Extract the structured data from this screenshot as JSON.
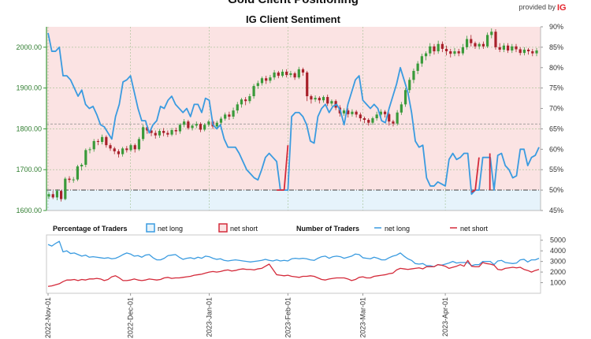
{
  "header": {
    "title": "Gold Client Positioning",
    "subtitle": "IG Client Sentiment",
    "brand_provided_by": "provided by",
    "brand_logo": "IG"
  },
  "colors": {
    "long": "#3a9be0",
    "short": "#d42a3a",
    "bull_candle": "#3a9a3a",
    "bear_candle": "#a8202a",
    "long_zone": "#e6f3fb",
    "short_zone": "#fbe3e3",
    "left_axis": "#3a9a3a",
    "brand_red": "#e4232b"
  },
  "legend": {
    "percentage_title": "Percentage of Traders",
    "pct_long": "net long",
    "pct_short": "net short",
    "number_title": "Number of Traders",
    "num_long": "net long",
    "num_short": "net short"
  },
  "chart_data": [
    {
      "type": "candlestick",
      "title": "IG Client Sentiment",
      "series_name": "Gold",
      "ylim_left": [
        1600,
        2050
      ],
      "left_ticks": [
        "1600.00",
        "1700.00",
        "1800.00",
        "1900.00",
        "2000.00"
      ],
      "ylim_right": [
        45,
        90
      ],
      "right_ticks": [
        "45%",
        "50%",
        "55%",
        "60%",
        "65%",
        "70%",
        "75%",
        "80%",
        "85%",
        "90%"
      ],
      "reference_lines": [
        {
          "axis": "left",
          "value": 1812,
          "style": "dashed"
        },
        {
          "axis": "right",
          "value": 50,
          "style": "dash-dot"
        }
      ],
      "candles": [
        [
          1634,
          1640,
          1628,
          1645
        ],
        [
          1640,
          1632,
          1628,
          1648
        ],
        [
          1632,
          1648,
          1625,
          1652
        ],
        [
          1648,
          1628,
          1622,
          1650
        ],
        [
          1628,
          1678,
          1625,
          1682
        ],
        [
          1678,
          1675,
          1668,
          1684
        ],
        [
          1675,
          1676,
          1668,
          1682
        ],
        [
          1676,
          1708,
          1672,
          1712
        ],
        [
          1708,
          1712,
          1698,
          1716
        ],
        [
          1712,
          1748,
          1706,
          1752
        ],
        [
          1748,
          1750,
          1740,
          1755
        ],
        [
          1750,
          1770,
          1744,
          1775
        ],
        [
          1770,
          1768,
          1760,
          1775
        ],
        [
          1768,
          1780,
          1762,
          1786
        ],
        [
          1780,
          1760,
          1754,
          1784
        ],
        [
          1760,
          1752,
          1746,
          1765
        ],
        [
          1752,
          1745,
          1738,
          1756
        ],
        [
          1745,
          1738,
          1730,
          1750
        ],
        [
          1738,
          1752,
          1732,
          1756
        ],
        [
          1752,
          1748,
          1742,
          1758
        ],
        [
          1748,
          1760,
          1744,
          1764
        ],
        [
          1760,
          1750,
          1742,
          1764
        ],
        [
          1750,
          1775,
          1746,
          1780
        ],
        [
          1775,
          1804,
          1770,
          1810
        ],
        [
          1804,
          1796,
          1788,
          1808
        ],
        [
          1796,
          1790,
          1782,
          1800
        ],
        [
          1790,
          1784,
          1776,
          1796
        ],
        [
          1784,
          1795,
          1778,
          1800
        ],
        [
          1795,
          1790,
          1782,
          1802
        ],
        [
          1790,
          1786,
          1780,
          1796
        ],
        [
          1786,
          1797,
          1782,
          1802
        ],
        [
          1797,
          1794,
          1785,
          1803
        ],
        [
          1794,
          1810,
          1788,
          1814
        ],
        [
          1810,
          1818,
          1804,
          1824
        ],
        [
          1818,
          1802,
          1798,
          1822
        ],
        [
          1802,
          1808,
          1796,
          1812
        ],
        [
          1808,
          1812,
          1802,
          1818
        ],
        [
          1812,
          1798,
          1792,
          1816
        ],
        [
          1798,
          1810,
          1794,
          1814
        ],
        [
          1810,
          1818,
          1805,
          1822
        ],
        [
          1818,
          1806,
          1800,
          1822
        ],
        [
          1806,
          1815,
          1802,
          1820
        ],
        [
          1815,
          1825,
          1810,
          1830
        ],
        [
          1825,
          1835,
          1820,
          1840
        ],
        [
          1835,
          1830,
          1822,
          1842
        ],
        [
          1830,
          1845,
          1824,
          1852
        ],
        [
          1845,
          1860,
          1838,
          1866
        ],
        [
          1860,
          1872,
          1852,
          1876
        ],
        [
          1872,
          1868,
          1858,
          1878
        ],
        [
          1868,
          1880,
          1862,
          1886
        ],
        [
          1880,
          1905,
          1874,
          1910
        ],
        [
          1905,
          1912,
          1898,
          1918
        ],
        [
          1912,
          1924,
          1906,
          1928
        ],
        [
          1924,
          1918,
          1910,
          1930
        ],
        [
          1918,
          1926,
          1912,
          1932
        ],
        [
          1926,
          1938,
          1920,
          1944
        ],
        [
          1938,
          1930,
          1924,
          1942
        ],
        [
          1930,
          1940,
          1926,
          1946
        ],
        [
          1940,
          1932,
          1926,
          1946
        ],
        [
          1932,
          1936,
          1926,
          1942
        ],
        [
          1936,
          1926,
          1920,
          1940
        ],
        [
          1926,
          1946,
          1922,
          1952
        ],
        [
          1946,
          1938,
          1930,
          1950
        ],
        [
          1938,
          1880,
          1868,
          1942
        ],
        [
          1880,
          1872,
          1862,
          1884
        ],
        [
          1872,
          1876,
          1866,
          1882
        ],
        [
          1876,
          1870,
          1862,
          1880
        ],
        [
          1870,
          1878,
          1864,
          1882
        ],
        [
          1878,
          1862,
          1856,
          1884
        ],
        [
          1862,
          1868,
          1856,
          1872
        ],
        [
          1868,
          1852,
          1846,
          1872
        ],
        [
          1852,
          1838,
          1830,
          1858
        ],
        [
          1838,
          1845,
          1832,
          1850
        ],
        [
          1845,
          1836,
          1828,
          1850
        ],
        [
          1836,
          1842,
          1830,
          1848
        ],
        [
          1842,
          1835,
          1828,
          1846
        ],
        [
          1835,
          1826,
          1818,
          1840
        ],
        [
          1826,
          1822,
          1814,
          1830
        ],
        [
          1822,
          1815,
          1808,
          1826
        ],
        [
          1815,
          1826,
          1810,
          1830
        ],
        [
          1826,
          1835,
          1820,
          1842
        ],
        [
          1835,
          1842,
          1828,
          1848
        ],
        [
          1842,
          1836,
          1828,
          1846
        ],
        [
          1836,
          1818,
          1808,
          1840
        ],
        [
          1818,
          1813,
          1806,
          1822
        ],
        [
          1813,
          1840,
          1808,
          1846
        ],
        [
          1840,
          1860,
          1834,
          1866
        ],
        [
          1860,
          1895,
          1854,
          1900
        ],
        [
          1895,
          1920,
          1888,
          1926
        ],
        [
          1920,
          1942,
          1912,
          1948
        ],
        [
          1942,
          1960,
          1934,
          1966
        ],
        [
          1960,
          1978,
          1952,
          1984
        ],
        [
          1978,
          1985,
          1968,
          1990
        ],
        [
          1985,
          2002,
          1978,
          2010
        ],
        [
          2002,
          1990,
          1982,
          2008
        ],
        [
          1990,
          2008,
          1984,
          2016
        ],
        [
          2008,
          1996,
          1988,
          2014
        ],
        [
          1996,
          1990,
          1980,
          2004
        ],
        [
          1990,
          1984,
          1975,
          1996
        ],
        [
          1984,
          1990,
          1978,
          1998
        ],
        [
          1990,
          1985,
          1978,
          1996
        ],
        [
          1985,
          2000,
          1980,
          2008
        ],
        [
          2000,
          2020,
          1994,
          2028
        ],
        [
          2020,
          2010,
          2002,
          2030
        ],
        [
          2010,
          2002,
          1996,
          2014
        ],
        [
          2002,
          2008,
          1995,
          2012
        ],
        [
          2008,
          2002,
          1996,
          2014
        ],
        [
          2002,
          2030,
          1998,
          2036
        ],
        [
          2030,
          2038,
          2022,
          2046
        ],
        [
          2038,
          2000,
          1994,
          2044
        ],
        [
          2000,
          1994,
          1988,
          2010
        ],
        [
          1994,
          2004,
          1988,
          2010
        ],
        [
          2004,
          1992,
          1986,
          2010
        ],
        [
          1992,
          2002,
          1986,
          2008
        ],
        [
          2002,
          1995,
          1988,
          2008
        ],
        [
          1995,
          1986,
          1980,
          2000
        ],
        [
          1986,
          1994,
          1980,
          2000
        ],
        [
          1994,
          1990,
          1982,
          1998
        ],
        [
          1990,
          1985,
          1978,
          1996
        ],
        [
          1985,
          1992,
          1978,
          1998
        ]
      ],
      "net_long_pct": [
        88.5,
        84.0,
        84.0,
        85.0,
        78.0,
        78.0,
        77.0,
        75.0,
        73.0,
        74.5,
        71.0,
        70.0,
        70.5,
        68.5,
        66.0,
        65.5,
        64.0,
        62.5,
        68.0,
        71.0,
        76.5,
        77.0,
        78.0,
        74.0,
        70.0,
        67.0,
        67.0,
        64.0,
        66.0,
        67.0,
        70.5,
        70.0,
        72.0,
        73.0,
        71.0,
        70.0,
        69.0,
        70.0,
        68.0,
        71.0,
        71.0,
        69.0,
        72.5,
        72.0,
        66.0,
        65.0,
        66.0,
        62.5,
        60.5,
        60.5,
        60.5,
        59.0,
        57.0,
        55.0,
        54.0,
        53.0,
        52.5,
        55.0,
        58.0,
        59.0,
        58.0,
        57.0,
        50.0,
        50.0,
        50.0,
        68.0,
        69.0,
        69.0,
        68.0,
        66.0,
        62.0,
        61.5,
        68.0,
        70.0,
        71.0,
        69.0,
        70.5,
        71.0,
        69.5,
        66.0,
        71.0,
        74.0,
        77.0,
        78.0,
        72.0,
        71.0,
        70.0,
        71.0,
        70.0,
        67.0,
        66.5,
        70.0,
        73.0,
        76.0,
        80.0,
        77.0,
        74.0,
        69.0,
        62.0,
        60.5,
        61.0,
        53.0,
        51.0,
        51.0,
        52.0,
        51.5,
        51.0,
        57.5,
        59.0,
        57.5,
        58.0,
        59.0,
        59.0,
        49.0,
        50.0,
        50.0,
        58.0,
        58.0,
        58.0,
        50.0,
        58.5,
        59.0,
        56.0,
        55.0,
        53.0,
        53.5,
        60.0,
        60.0,
        56.0,
        58.0,
        58.5,
        60.5
      ],
      "xlim_pct_series": [
        0,
        131
      ],
      "net_short_highlight_pct": [
        [
          61,
          50.0
        ],
        [
          62,
          50.0
        ],
        [
          63,
          50.0
        ],
        [
          64,
          61.0
        ],
        [
          113,
          49.5
        ],
        [
          114,
          50.0
        ],
        [
          115,
          58.0
        ],
        [
          118,
          50.0
        ]
      ]
    },
    {
      "type": "line",
      "title": "Number of Traders",
      "ylim": [
        0,
        5500
      ],
      "y_ticks": [
        "1000",
        "2000",
        "3000",
        "4000",
        "5000"
      ],
      "x_tick_labels": [
        "2022-Nov-01",
        "2022-Dec-01",
        "2023-Jan-01",
        "2023-Feb-01",
        "2023-Mar-01",
        "2023-Apr-01"
      ],
      "series": [
        {
          "name": "net long",
          "values": [
            4600,
            4450,
            4700,
            4900,
            3900,
            4000,
            3750,
            3800,
            3650,
            3500,
            3600,
            3400,
            3450,
            3400,
            3350,
            3300,
            3350,
            3250,
            3300,
            3450,
            3650,
            3800,
            3700,
            3500,
            3550,
            3400,
            3600,
            3650,
            3350,
            3150,
            3150,
            3300,
            3550,
            3600,
            3650,
            3400,
            3200,
            3300,
            3350,
            3250,
            3400,
            3300,
            3500,
            3450,
            3300,
            3200,
            3250,
            3100,
            3050,
            3100,
            3150,
            3100,
            3050,
            3000,
            2950,
            3000,
            3050,
            3100,
            3200,
            3100,
            3050,
            3150,
            3050,
            3100,
            3050,
            3250,
            3300,
            3250,
            3300,
            3250,
            3150,
            3100,
            3300,
            3450,
            3500,
            3300,
            3450,
            3500,
            3450,
            3300,
            3400,
            3500,
            3700,
            3650,
            3350,
            3300,
            3250,
            3400,
            3300,
            3150,
            3150,
            3350,
            3500,
            3600,
            3800,
            3500,
            3250,
            3100,
            2800,
            2750,
            2800,
            2600,
            2600,
            2500,
            2700,
            2650,
            2750,
            2850,
            3000,
            2850,
            2900,
            2900,
            2900,
            2600,
            2700,
            2700,
            3000,
            3000,
            3000,
            2700,
            3050,
            3100,
            2900,
            2850,
            2800,
            2850,
            3150,
            3200,
            2950,
            3150,
            3150,
            3300
          ]
        },
        {
          "name": "net short",
          "values": [
            650,
            700,
            800,
            900,
            1100,
            1250,
            1250,
            1300,
            1200,
            1300,
            1250,
            1350,
            1350,
            1400,
            1350,
            1200,
            1300,
            1550,
            1650,
            1450,
            1200,
            1200,
            1250,
            1350,
            1250,
            1200,
            1250,
            1350,
            1300,
            1250,
            1300,
            1450,
            1500,
            1400,
            1450,
            1450,
            1500,
            1550,
            1600,
            1700,
            1750,
            1800,
            1900,
            2000,
            2050,
            2000,
            2050,
            2150,
            2200,
            2100,
            2150,
            2250,
            2300,
            2250,
            2250,
            2200,
            2300,
            2350,
            2550,
            2750,
            2250,
            1750,
            1700,
            1650,
            1700,
            1600,
            1550,
            1500,
            1600,
            1600,
            1650,
            1600,
            1450,
            1300,
            1250,
            1350,
            1400,
            1450,
            1450,
            1450,
            1350,
            1200,
            1300,
            1500,
            1550,
            1450,
            1450,
            1600,
            1650,
            1700,
            1750,
            1850,
            1900,
            2200,
            2350,
            2300,
            2250,
            2300,
            2350,
            2400,
            2300,
            2500,
            2500,
            2500,
            2700,
            2650,
            2550,
            2350,
            2450,
            2550,
            2700,
            2550,
            3100,
            2550,
            2500,
            2500,
            2900,
            2800,
            2750,
            2650,
            2250,
            2200,
            2350,
            2400,
            2450,
            2400,
            2450,
            2250,
            2150,
            2000,
            2150,
            2250
          ]
        }
      ]
    }
  ]
}
